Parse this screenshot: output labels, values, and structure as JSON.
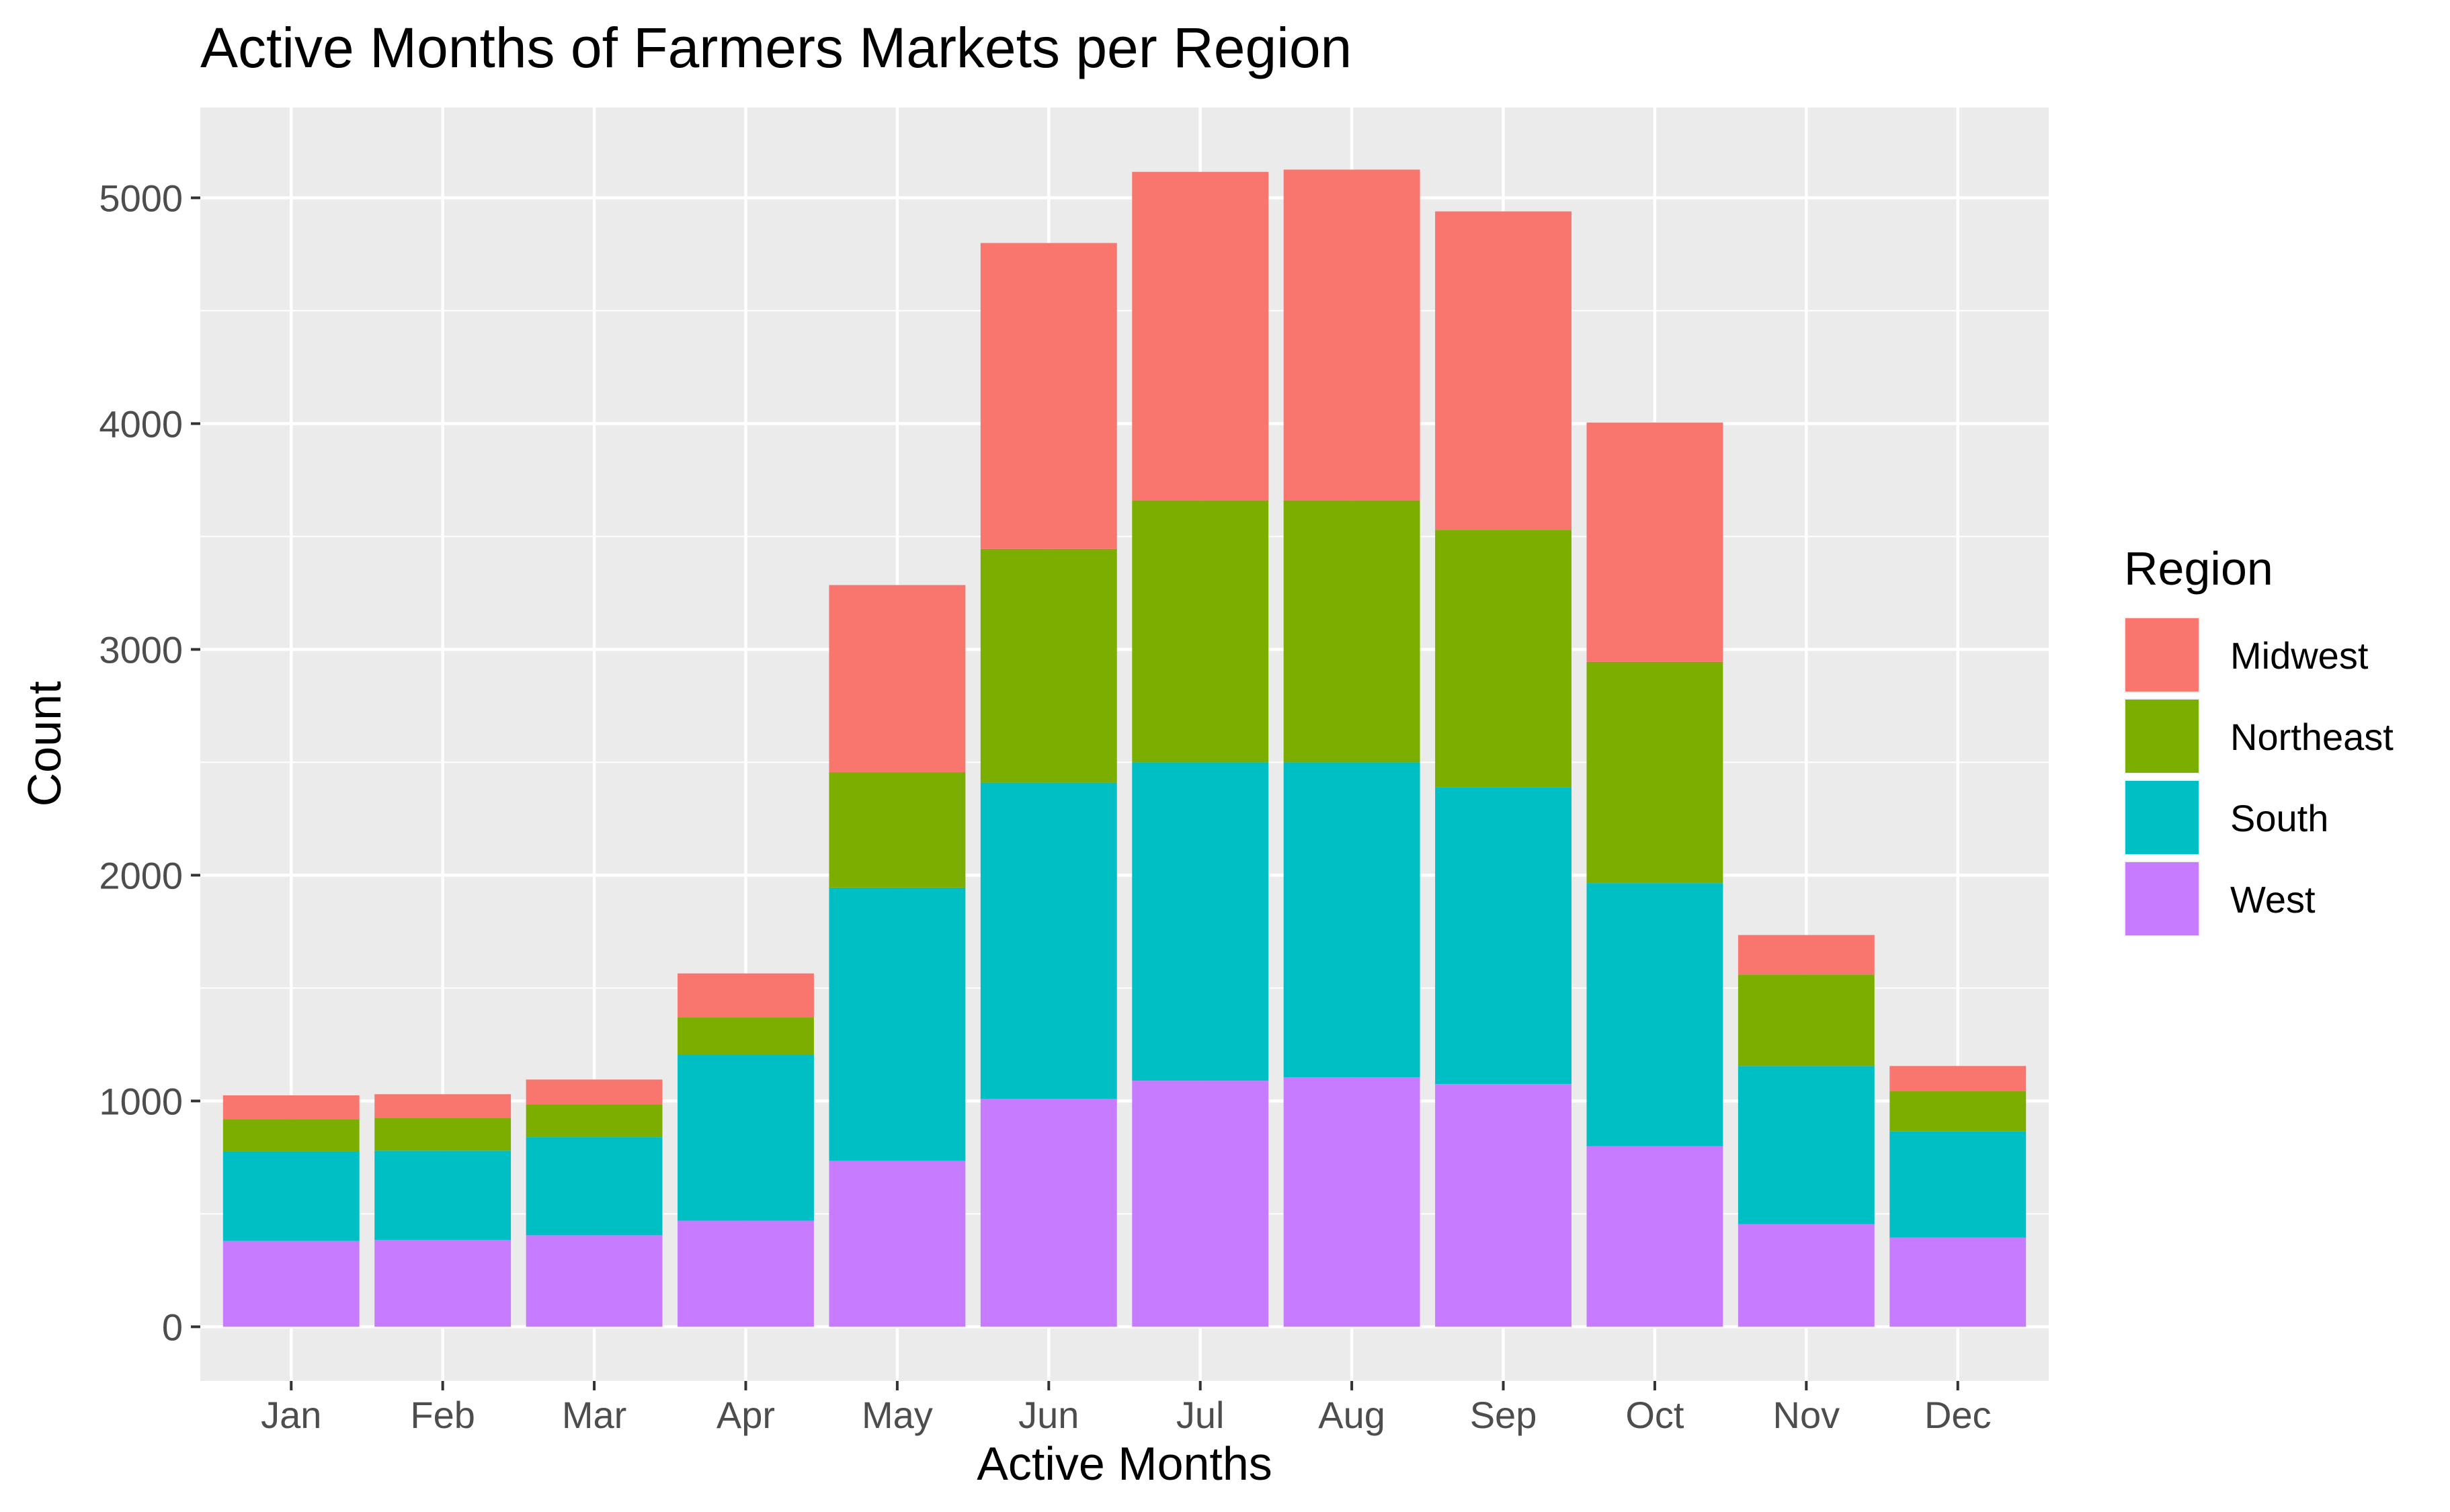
{
  "chart_data": {
    "type": "bar",
    "stacked": true,
    "title": "Active Months of Farmers Markets per Region",
    "xlabel": "Active Months",
    "ylabel": "Count",
    "categories": [
      "Jan",
      "Feb",
      "Mar",
      "Apr",
      "May",
      "Jun",
      "Jul",
      "Aug",
      "Sep",
      "Oct",
      "Nov",
      "Dec"
    ],
    "ylim": [
      -240,
      5400
    ],
    "yticks": [
      0,
      1000,
      2000,
      3000,
      4000,
      5000
    ],
    "grid": true,
    "legend": {
      "title": "Region",
      "position": "right",
      "entries": [
        "Midwest",
        "Northeast",
        "South",
        "West"
      ]
    },
    "series": [
      {
        "name": "West",
        "color": "#C77CFF",
        "values": [
          380,
          385,
          405,
          470,
          735,
          1010,
          1090,
          1105,
          1075,
          800,
          455,
          395
        ]
      },
      {
        "name": "South",
        "color": "#00BFC4",
        "values": [
          395,
          395,
          435,
          735,
          1210,
          1400,
          1410,
          1395,
          1315,
          1165,
          700,
          470
        ]
      },
      {
        "name": "Northeast",
        "color": "#7CAE00",
        "values": [
          145,
          145,
          145,
          165,
          510,
          1035,
          1160,
          1160,
          1140,
          980,
          405,
          180
        ]
      },
      {
        "name": "Midwest",
        "color": "#F8766D",
        "values": [
          105,
          105,
          110,
          195,
          830,
          1355,
          1455,
          1465,
          1410,
          1060,
          175,
          110
        ]
      }
    ]
  }
}
